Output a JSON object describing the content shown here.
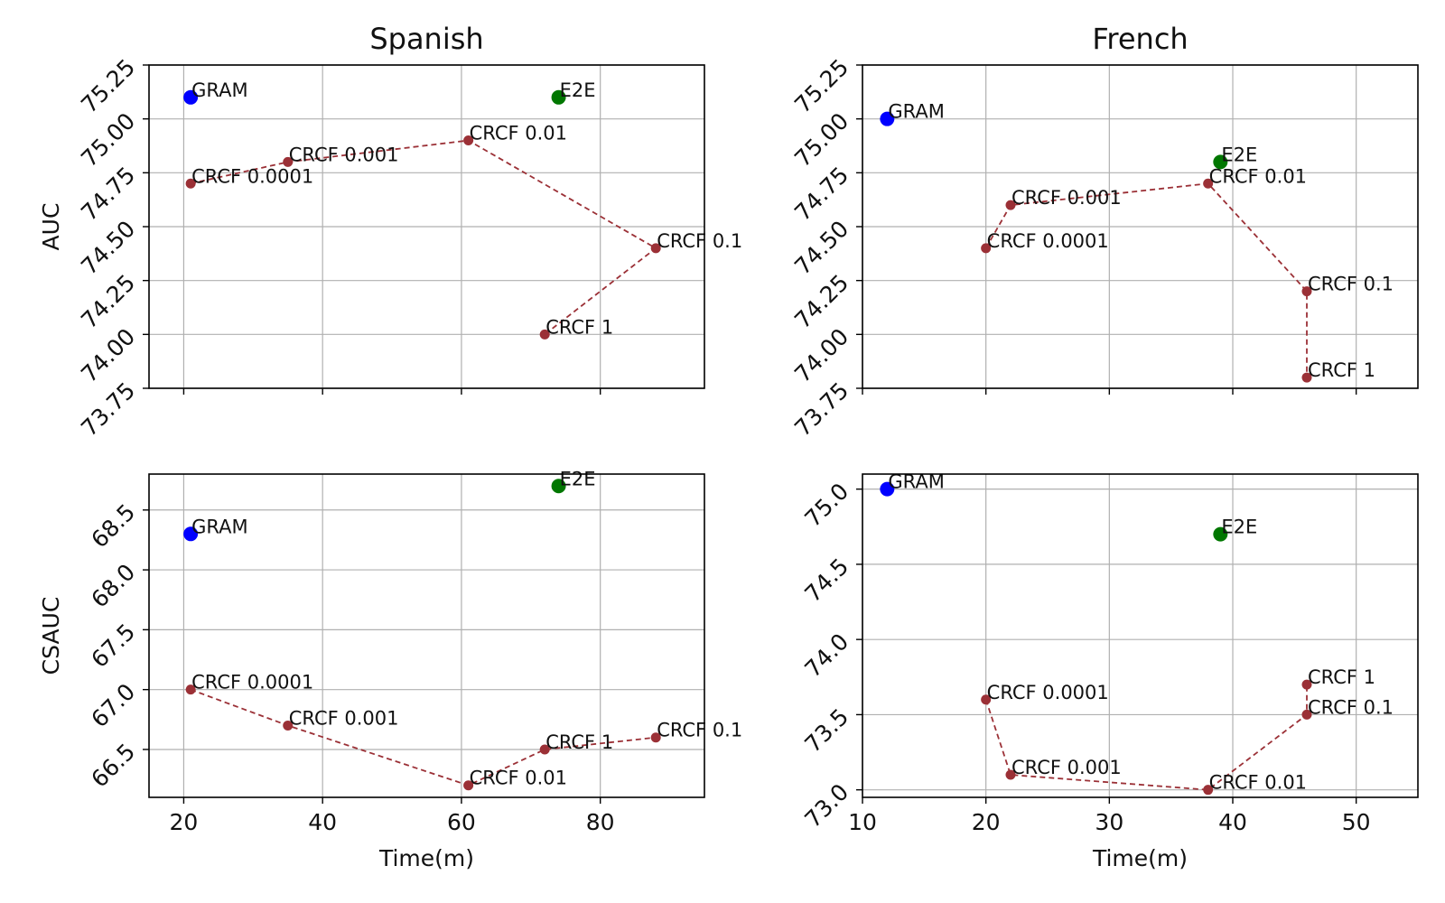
{
  "chart_data": [
    {
      "type": "scatter",
      "title": "Spanish",
      "xlabel": "",
      "ylabel": "AUC",
      "xlim": [
        15,
        95
      ],
      "ylim": [
        73.75,
        75.25
      ],
      "xticks": [
        "20",
        "40",
        "60",
        "80"
      ],
      "yticks": [
        "73.75",
        "74.00",
        "74.25",
        "74.50",
        "74.75",
        "75.00",
        "75.25"
      ],
      "show_xtick_labels": false,
      "grid": true,
      "series": [
        {
          "x": [
            21
          ],
          "y": [
            75.1
          ],
          "labels": [
            "GRAM"
          ],
          "color": "#0000ff",
          "line": false,
          "marker_size": 8
        },
        {
          "x": [
            74
          ],
          "y": [
            75.1
          ],
          "labels": [
            "E2E"
          ],
          "color": "#007700",
          "line": false,
          "marker_size": 8
        },
        {
          "x": [
            21,
            35,
            61,
            88,
            72
          ],
          "y": [
            74.7,
            74.8,
            74.9,
            74.4,
            74.0
          ],
          "labels": [
            "CRCF 0.0001",
            "CRCF 0.001",
            "CRCF 0.01",
            "CRCF 0.1",
            "CRCF 1"
          ],
          "color": "#9b3036",
          "line": true,
          "marker_size": 5.5
        }
      ]
    },
    {
      "type": "scatter",
      "title": "French",
      "xlabel": "",
      "ylabel": "",
      "xlim": [
        10,
        55
      ],
      "ylim": [
        73.75,
        75.25
      ],
      "xticks": [
        "10",
        "20",
        "30",
        "40",
        "50"
      ],
      "yticks": [
        "73.75",
        "74.00",
        "74.25",
        "74.50",
        "74.75",
        "75.00",
        "75.25"
      ],
      "show_xtick_labels": false,
      "grid": true,
      "series": [
        {
          "x": [
            12
          ],
          "y": [
            75.0
          ],
          "labels": [
            "GRAM"
          ],
          "color": "#0000ff",
          "line": false,
          "marker_size": 8
        },
        {
          "x": [
            39
          ],
          "y": [
            74.8
          ],
          "labels": [
            "E2E"
          ],
          "color": "#007700",
          "line": false,
          "marker_size": 8
        },
        {
          "x": [
            20,
            22,
            38,
            46,
            46
          ],
          "y": [
            74.4,
            74.6,
            74.7,
            74.2,
            73.8
          ],
          "labels": [
            "CRCF 0.0001",
            "CRCF 0.001",
            "CRCF 0.01",
            "CRCF 0.1",
            "CRCF 1"
          ],
          "color": "#9b3036",
          "line": true,
          "marker_size": 5.5
        }
      ]
    },
    {
      "type": "scatter",
      "title": "",
      "xlabel": "Time(m)",
      "ylabel": "CSAUC",
      "xlim": [
        15,
        95
      ],
      "ylim": [
        66.1,
        68.8
      ],
      "xticks": [
        "20",
        "40",
        "60",
        "80"
      ],
      "yticks": [
        "66.5",
        "67.0",
        "67.5",
        "68.0",
        "68.5"
      ],
      "show_xtick_labels": true,
      "grid": true,
      "series": [
        {
          "x": [
            21
          ],
          "y": [
            68.3
          ],
          "labels": [
            "GRAM"
          ],
          "color": "#0000ff",
          "line": false,
          "marker_size": 8
        },
        {
          "x": [
            74
          ],
          "y": [
            68.7
          ],
          "labels": [
            "E2E"
          ],
          "color": "#007700",
          "line": false,
          "marker_size": 8
        },
        {
          "x": [
            21,
            35,
            61,
            72,
            88
          ],
          "y": [
            67.0,
            66.7,
            66.2,
            66.5,
            66.6
          ],
          "labels": [
            "CRCF 0.0001",
            "CRCF 0.001",
            "CRCF 0.01",
            "CRCF 1",
            "CRCF 0.1"
          ],
          "color": "#9b3036",
          "line": true,
          "marker_size": 5.5
        }
      ]
    },
    {
      "type": "scatter",
      "title": "",
      "xlabel": "Time(m)",
      "ylabel": "",
      "xlim": [
        10,
        55
      ],
      "ylim": [
        72.95,
        75.1
      ],
      "xticks": [
        "10",
        "20",
        "30",
        "40",
        "50"
      ],
      "yticks": [
        "73.0",
        "73.5",
        "74.0",
        "74.5",
        "75.0"
      ],
      "show_xtick_labels": true,
      "grid": true,
      "series": [
        {
          "x": [
            12
          ],
          "y": [
            75.0
          ],
          "labels": [
            "GRAM"
          ],
          "color": "#0000ff",
          "line": false,
          "marker_size": 8
        },
        {
          "x": [
            39
          ],
          "y": [
            74.7
          ],
          "labels": [
            "E2E"
          ],
          "color": "#007700",
          "line": false,
          "marker_size": 8
        },
        {
          "x": [
            20,
            22,
            38,
            46,
            46
          ],
          "y": [
            73.6,
            73.1,
            73.0,
            73.5,
            73.7
          ],
          "labels": [
            "CRCF 0.0001",
            "CRCF 0.001",
            "CRCF 0.01",
            "CRCF 0.1",
            "CRCF 1"
          ],
          "color": "#9b3036",
          "line": true,
          "marker_size": 5.5
        }
      ]
    }
  ]
}
